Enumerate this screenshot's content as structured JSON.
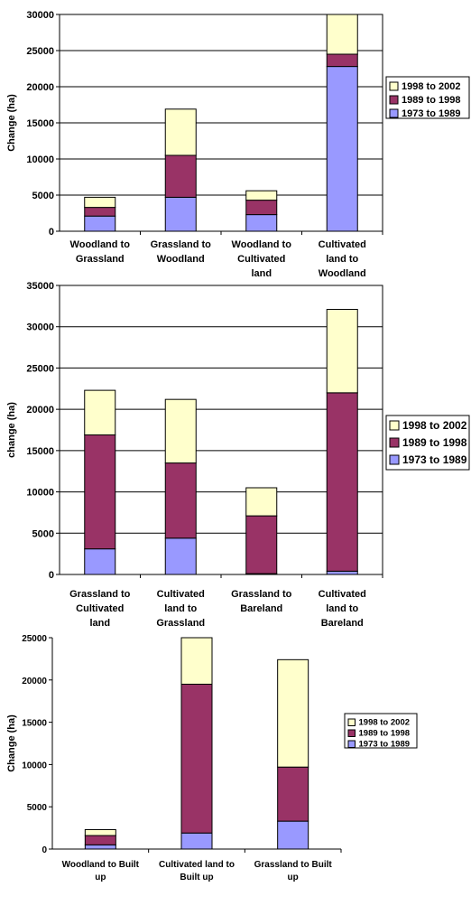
{
  "colors": {
    "period_1998_2002": "#ffffcc",
    "period_1989_1998": "#993366",
    "period_1973_1989": "#9999ff"
  },
  "chart_data": [
    {
      "type": "bar",
      "stacked": true,
      "ylabel": "Change (ha)",
      "ylim": [
        0,
        30000
      ],
      "yticks": [
        "0",
        "5000",
        "10000",
        "15000",
        "20000",
        "25000",
        "30000"
      ],
      "grid": true,
      "legend_position": "right",
      "categories": [
        [
          "Woodland to",
          "Grassland"
        ],
        [
          "Grassland to",
          "Woodland"
        ],
        [
          "Woodland to",
          "Cultivated",
          "land"
        ],
        [
          "Cultivated",
          "land to",
          "Woodland"
        ]
      ],
      "series": [
        {
          "name": "1973 to 1989",
          "values": [
            2100,
            4700,
            2300,
            22800
          ]
        },
        {
          "name": "1989 to 1998",
          "values": [
            1200,
            5800,
            2000,
            1700
          ]
        },
        {
          "name": "1998 to 2002",
          "values": [
            1400,
            6400,
            1300,
            5500
          ]
        }
      ]
    },
    {
      "type": "bar",
      "stacked": true,
      "ylabel": "change (ha)",
      "ylim": [
        0,
        35000
      ],
      "yticks": [
        "0",
        "5000",
        "10000",
        "15000",
        "20000",
        "25000",
        "30000",
        "35000"
      ],
      "grid": true,
      "legend_position": "right",
      "categories": [
        [
          "Grassland to",
          "Cultivated",
          "land"
        ],
        [
          "Cultivated",
          "land to",
          "Grassland"
        ],
        [
          "Grassland to",
          "Bareland"
        ],
        [
          "Cultivated",
          "land to",
          "Bareland"
        ]
      ],
      "series": [
        {
          "name": "1973 to 1989",
          "values": [
            3100,
            4400,
            100,
            400
          ]
        },
        {
          "name": "1989 to 1998",
          "values": [
            13800,
            9100,
            7000,
            21600
          ]
        },
        {
          "name": "1998 to 2002",
          "values": [
            5400,
            7700,
            3400,
            10100
          ]
        }
      ]
    },
    {
      "type": "bar",
      "stacked": true,
      "ylabel": "Change (ha)",
      "ylim": [
        0,
        25000
      ],
      "yticks": [
        "0",
        "5000",
        "10000",
        "15000",
        "20000",
        "25000"
      ],
      "grid": false,
      "legend_position": "right",
      "categories": [
        [
          "Woodland to Built",
          "up"
        ],
        [
          "Cultivated land to",
          "Built up"
        ],
        [
          "Grassland to Built",
          "up"
        ]
      ],
      "series": [
        {
          "name": "1973 to 1989",
          "values": [
            500,
            1900,
            3300
          ]
        },
        {
          "name": "1989 to 1998",
          "values": [
            1100,
            17600,
            6400
          ]
        },
        {
          "name": "1998 to 2002",
          "values": [
            700,
            5800,
            12700
          ]
        }
      ]
    }
  ]
}
